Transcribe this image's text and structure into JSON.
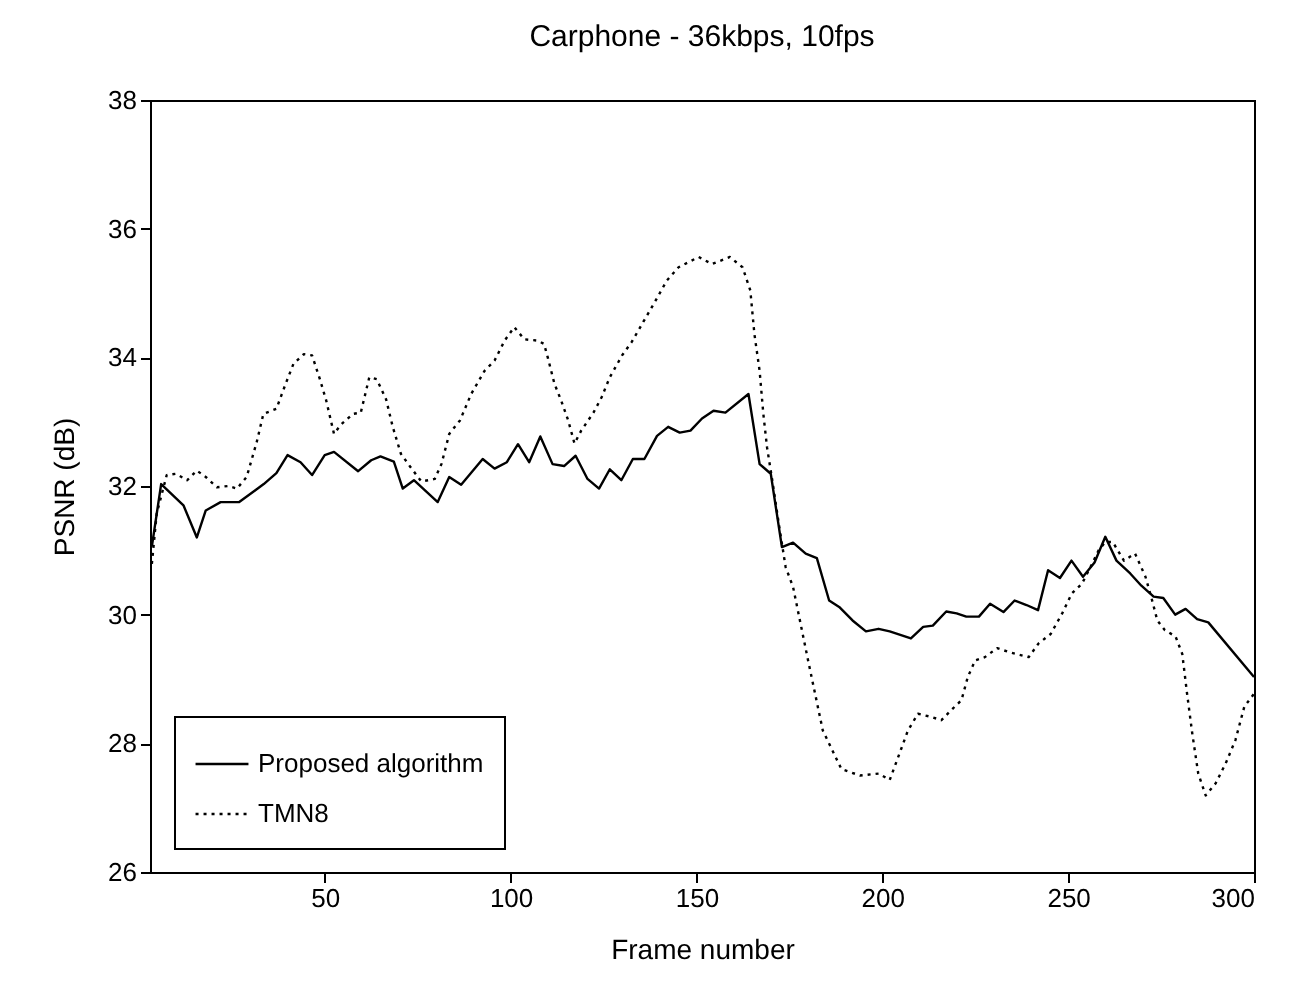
{
  "chart_data": {
    "type": "line",
    "title": "Carphone - 36kbps, 10fps",
    "xlabel": "Frame number",
    "ylabel": "PSNR (dB)",
    "xlim": [
      3,
      300
    ],
    "xticks": [
      50,
      100,
      150,
      200,
      250,
      300
    ],
    "ylim": [
      26,
      38
    ],
    "yticks": [
      26,
      28,
      30,
      32,
      34,
      36,
      38
    ],
    "grid": false,
    "legend": "bottom left",
    "series": [
      {
        "name": "Proposed algorithm",
        "color": "#000000",
        "line_style": "solid",
        "x": [
          3.5,
          6,
          12,
          15.6,
          18,
          22,
          27,
          33.6,
          37,
          40,
          43.5,
          46.6,
          50,
          52.5,
          59,
          62.5,
          65,
          68.6,
          71,
          74,
          80.4,
          83.5,
          86.7,
          92.5,
          95.7,
          99,
          102,
          105,
          108,
          111.3,
          114.4,
          117.5,
          120.7,
          123.8,
          126.7,
          129.8,
          132.9,
          136,
          139.4,
          142.4,
          145.5,
          148.4,
          151.5,
          154.6,
          157.8,
          164,
          167,
          170,
          173,
          176,
          179.4,
          182.4,
          185.7,
          188.4,
          192,
          195.6,
          199,
          202,
          207.7,
          211,
          213.6,
          217.2,
          220,
          222.6,
          226,
          229,
          232.6,
          235.6,
          238.8,
          241.9,
          244.6,
          247.8,
          250.9,
          254,
          257.1,
          260,
          263,
          266.7,
          269.7,
          273,
          275.6,
          278.8,
          281.6,
          284.7,
          287.7,
          300
        ],
        "values": [
          31.06,
          32.03,
          31.7,
          31.2,
          31.62,
          31.75,
          31.75,
          32.03,
          32.2,
          32.48,
          32.37,
          32.17,
          32.48,
          32.53,
          32.23,
          32.4,
          32.46,
          32.38,
          31.96,
          32.09,
          31.75,
          32.14,
          32.02,
          32.42,
          32.27,
          32.37,
          32.65,
          32.37,
          32.77,
          32.34,
          32.31,
          32.47,
          32.11,
          31.96,
          32.26,
          32.09,
          32.42,
          32.42,
          32.78,
          32.92,
          32.83,
          32.86,
          33.05,
          33.17,
          33.14,
          33.43,
          32.34,
          32.19,
          31.05,
          31.12,
          30.95,
          30.88,
          30.22,
          30.12,
          29.91,
          29.74,
          29.78,
          29.74,
          29.63,
          29.81,
          29.83,
          30.05,
          30.02,
          29.97,
          29.97,
          30.17,
          30.04,
          30.22,
          30.15,
          30.07,
          30.69,
          30.57,
          30.84,
          30.59,
          30.81,
          31.21,
          30.84,
          30.64,
          30.45,
          30.28,
          30.26,
          30.0,
          30.09,
          29.93,
          29.88,
          29.03
        ]
      },
      {
        "name": "TMN8",
        "color": "#000000",
        "line_style": "dotted",
        "x": [
          3.5,
          4.8,
          7.5,
          10,
          13,
          15.6,
          18,
          21,
          24,
          26.4,
          29,
          31.7,
          33.5,
          37,
          39.5,
          41.6,
          44.4,
          46.6,
          48.7,
          50.4,
          52.5,
          54.3,
          57.6,
          59.7,
          62,
          64,
          66.5,
          68.3,
          70.5,
          73,
          76,
          79.6,
          81.4,
          83.5,
          86.4,
          89.4,
          93,
          95.7,
          98.4,
          101,
          103.7,
          107.3,
          109,
          110,
          111.8,
          113.6,
          115.5,
          117.2,
          119,
          122.3,
          124.5,
          126.7,
          130,
          132.6,
          135.7,
          139,
          142,
          145.2,
          150.6,
          154.2,
          159,
          162.4,
          164.5,
          165.6,
          167,
          168,
          169,
          170.4,
          172.3,
          174,
          176,
          180,
          184,
          189,
          194,
          199,
          202,
          205,
          206.9,
          209.6,
          213.2,
          215.9,
          218.6,
          221.3,
          223,
          225,
          227.6,
          230.9,
          234,
          236.7,
          239.4,
          242,
          245.3,
          248.4,
          251,
          253.7,
          256,
          258.2,
          260,
          262,
          265,
          268,
          270.8,
          272.6,
          274,
          276,
          278.9,
          280.7,
          282,
          283.4,
          285,
          287,
          289.7,
          292.4,
          295,
          297.4,
          300
        ],
        "values": [
          30.79,
          31.57,
          32.17,
          32.19,
          32.09,
          32.24,
          32.14,
          31.98,
          32.0,
          31.96,
          32.14,
          32.68,
          33.12,
          33.2,
          33.59,
          33.9,
          34.05,
          34.03,
          33.66,
          33.33,
          32.81,
          32.95,
          33.12,
          33.14,
          33.69,
          33.66,
          33.35,
          32.92,
          32.5,
          32.3,
          32.07,
          32.11,
          32.34,
          32.81,
          33.02,
          33.43,
          33.79,
          33.95,
          34.26,
          34.47,
          34.28,
          34.26,
          34.21,
          34.0,
          33.59,
          33.33,
          33.02,
          32.66,
          32.86,
          33.14,
          33.38,
          33.69,
          34.03,
          34.24,
          34.55,
          34.88,
          35.19,
          35.4,
          35.56,
          35.45,
          35.56,
          35.4,
          35.04,
          34.36,
          33.79,
          33.12,
          32.6,
          32.09,
          31.36,
          30.74,
          30.43,
          29.3,
          28.2,
          27.6,
          27.5,
          27.53,
          27.43,
          27.9,
          28.2,
          28.46,
          28.41,
          28.36,
          28.52,
          28.67,
          29.03,
          29.29,
          29.34,
          29.48,
          29.42,
          29.38,
          29.34,
          29.55,
          29.7,
          30.02,
          30.33,
          30.48,
          30.74,
          31.0,
          31.13,
          31.13,
          30.84,
          30.95,
          30.59,
          30.22,
          29.91,
          29.76,
          29.66,
          29.39,
          28.77,
          28.15,
          27.53,
          27.19,
          27.38,
          27.69,
          28.05,
          28.57,
          28.77
        ]
      }
    ]
  }
}
